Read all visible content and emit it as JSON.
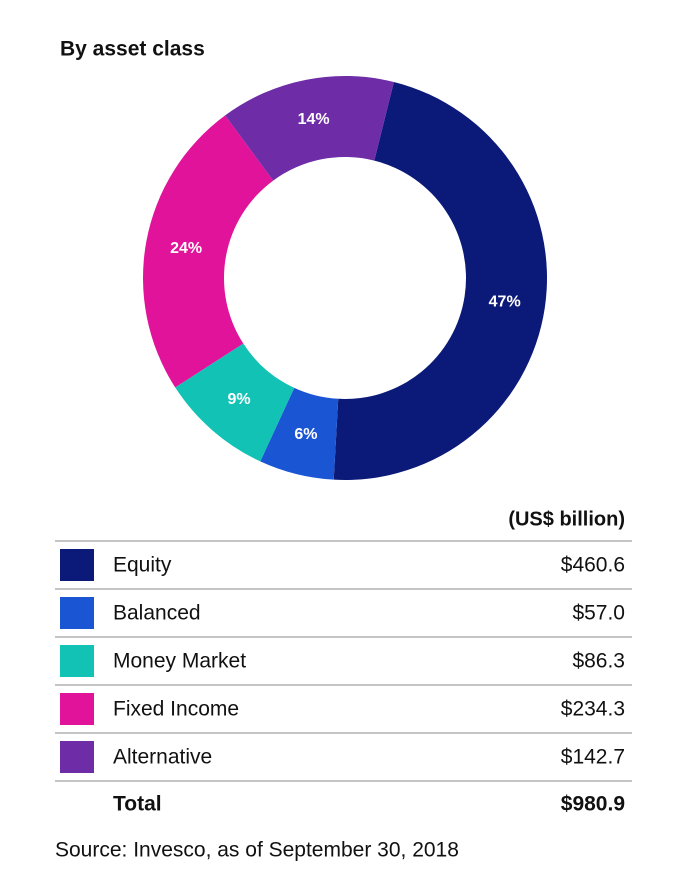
{
  "chart_data": {
    "type": "donut",
    "title": "By asset class",
    "categories": [
      "Equity",
      "Balanced",
      "Money Market",
      "Fixed Income",
      "Alternative"
    ],
    "values": [
      47,
      6,
      9,
      24,
      14
    ],
    "value_labels": [
      "47%",
      "6%",
      "9%",
      "24%",
      "14%"
    ],
    "colors": [
      "#0b1a78",
      "#1a55d4",
      "#12c3b5",
      "#e0139a",
      "#6e2ca7"
    ]
  },
  "table": {
    "unit": "(US$ billion)",
    "amounts": [
      "$460.6",
      "$57.0",
      "$86.3",
      "$234.3",
      "$142.7"
    ],
    "total_label": "Total",
    "total": "$980.9"
  },
  "source": "Source: Invesco, as of September 30, 2018"
}
